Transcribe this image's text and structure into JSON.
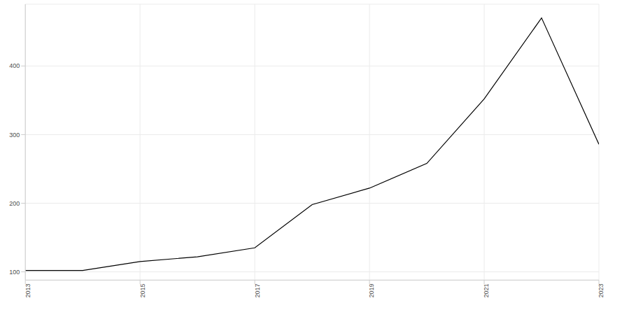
{
  "chart_data": {
    "type": "line",
    "x": [
      2013,
      2014,
      2015,
      2016,
      2017,
      2018,
      2019,
      2020,
      2021,
      2022,
      2023
    ],
    "values": [
      102,
      102,
      115,
      122,
      135,
      198,
      222,
      258,
      352,
      470,
      286
    ],
    "color": "#000000",
    "xlim": [
      2013,
      2023
    ],
    "xticks": [
      2013,
      2015,
      2017,
      2019,
      2021,
      2023
    ],
    "ylim": [
      88,
      490
    ],
    "yticks": [
      100,
      200,
      300,
      400
    ],
    "grid": true
  }
}
